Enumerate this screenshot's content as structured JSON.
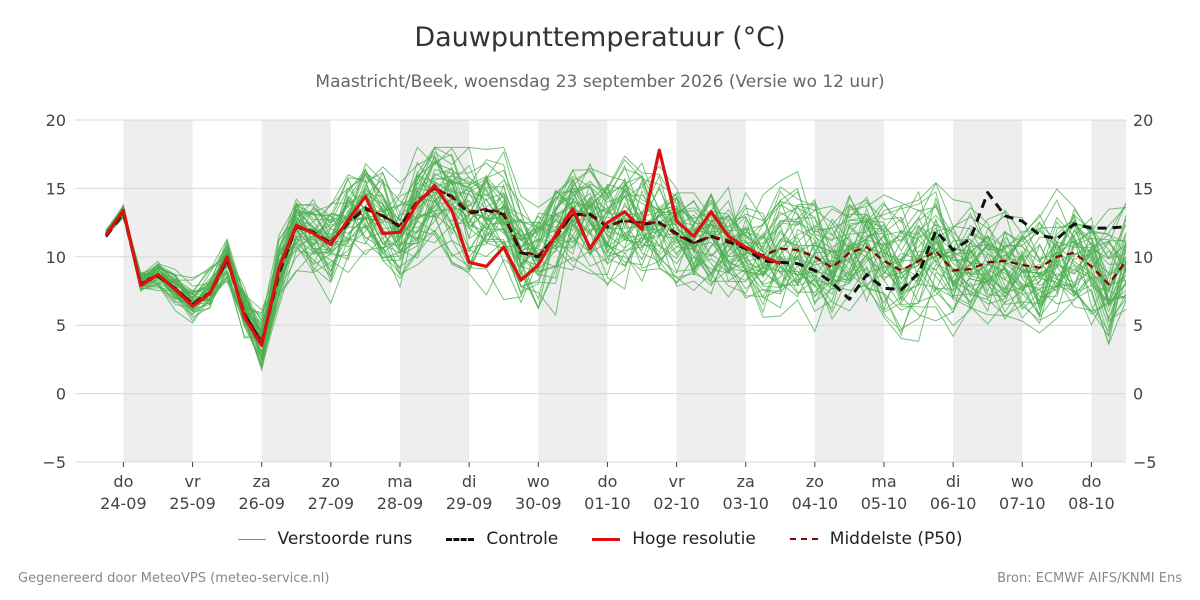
{
  "title": "Dauwpunttemperatuur (°C)",
  "subtitle": "Maastricht/Beek, woensdag 23 september 2026 (Versie wo 12 uur)",
  "footer": {
    "left": "Gegenereerd door MeteoVPS (meteo-service.nl)",
    "right": "Bron: ECMWF AIFS/KNMI Ens"
  },
  "legend": [
    {
      "label": "Verstoorde runs",
      "style": "ensemble"
    },
    {
      "label": "Controle",
      "style": "control"
    },
    {
      "label": "Hoge resolutie",
      "style": "hres"
    },
    {
      "label": "Middelste (P50)",
      "style": "p50"
    }
  ],
  "colors": {
    "ensemble": "#4caf50",
    "control": "#111111",
    "hres": "#dd1111",
    "p50": "#8b0000",
    "shade": "#eeeeee",
    "grid": "#d8d8d8"
  },
  "chart_data": {
    "type": "line",
    "ylim": [
      -5,
      20
    ],
    "yticks": [
      20,
      15,
      10,
      5,
      0,
      -5
    ],
    "ytick_labels": [
      "20",
      "15",
      "10",
      "5",
      "0",
      "−5"
    ],
    "xlim": [
      -0.7,
      14.5
    ],
    "xticks": [
      {
        "x": 0,
        "day": "do",
        "date": "24-09"
      },
      {
        "x": 1,
        "day": "vr",
        "date": "25-09"
      },
      {
        "x": 2,
        "day": "za",
        "date": "26-09"
      },
      {
        "x": 3,
        "day": "zo",
        "date": "27-09"
      },
      {
        "x": 4,
        "day": "ma",
        "date": "28-09"
      },
      {
        "x": 5,
        "day": "di",
        "date": "29-09"
      },
      {
        "x": 6,
        "day": "wo",
        "date": "30-09"
      },
      {
        "x": 7,
        "day": "do",
        "date": "01-10"
      },
      {
        "x": 8,
        "day": "vr",
        "date": "02-10"
      },
      {
        "x": 9,
        "day": "za",
        "date": "03-10"
      },
      {
        "x": 10,
        "day": "zo",
        "date": "04-10"
      },
      {
        "x": 11,
        "day": "ma",
        "date": "05-10"
      },
      {
        "x": 12,
        "day": "di",
        "date": "06-10"
      },
      {
        "x": 13,
        "day": "wo",
        "date": "07-10"
      },
      {
        "x": 14,
        "day": "do",
        "date": "08-10"
      }
    ],
    "shaded_bands": [
      [
        0,
        1
      ],
      [
        2,
        3
      ],
      [
        4,
        5
      ],
      [
        6,
        7
      ],
      [
        8,
        9
      ],
      [
        10,
        11
      ],
      [
        12,
        13
      ],
      [
        14,
        14.5
      ]
    ],
    "ensemble_members": 50,
    "series": [
      {
        "name": "Hoge resolutie",
        "style": "hres",
        "x": [
          -0.25,
          0,
          0.25,
          0.5,
          0.75,
          1,
          1.25,
          1.5,
          1.75,
          2,
          2.25,
          2.5,
          2.75,
          3,
          3.25,
          3.5,
          3.75,
          4,
          4.25,
          4.5,
          4.75,
          5,
          5.25,
          5.5,
          5.75,
          6,
          6.25,
          6.5,
          6.75,
          7,
          7.25,
          7.5,
          7.75,
          8,
          8.25,
          8.5,
          8.75,
          9,
          9.25,
          9.5
        ],
        "y": [
          11.6,
          13.4,
          7.9,
          8.7,
          7.6,
          6.4,
          7.3,
          10.0,
          5.6,
          3.5,
          9.2,
          12.3,
          11.7,
          10.9,
          12.7,
          14.4,
          11.7,
          11.8,
          13.9,
          15.2,
          13.4,
          9.6,
          9.3,
          10.7,
          8.3,
          9.4,
          11.6,
          13.5,
          10.6,
          12.5,
          13.3,
          12.0,
          17.8,
          12.6,
          11.5,
          13.3,
          11.5,
          10.7,
          10.0,
          9.5
        ]
      },
      {
        "name": "Controle",
        "style": "control",
        "x": [
          -0.25,
          0,
          0.25,
          0.5,
          0.75,
          1,
          1.25,
          1.5,
          1.75,
          2,
          2.25,
          2.5,
          2.75,
          3,
          3.25,
          3.5,
          3.75,
          4,
          4.25,
          4.5,
          4.75,
          5,
          5.25,
          5.5,
          5.75,
          6,
          6.25,
          6.5,
          6.75,
          7,
          7.25,
          7.5,
          7.75,
          8,
          8.25,
          8.5,
          8.75,
          9,
          9.25,
          9.5,
          9.75,
          10,
          10.25,
          10.5,
          10.75,
          11,
          11.25,
          11.5,
          11.75,
          12,
          12.25,
          12.5,
          12.75,
          13,
          13.25,
          13.5,
          13.75,
          14,
          14.25,
          14.5
        ],
        "y": [
          11.5,
          13.2,
          8.0,
          8.6,
          7.7,
          6.5,
          7.3,
          9.8,
          5.8,
          3.7,
          8.8,
          12.2,
          11.8,
          11.0,
          12.5,
          13.5,
          13.0,
          12.2,
          14.0,
          15.0,
          14.4,
          13.2,
          13.4,
          13.1,
          10.3,
          10.0,
          11.5,
          13.1,
          13.1,
          12.2,
          12.7,
          12.4,
          12.5,
          11.7,
          11.0,
          11.5,
          11.1,
          10.6,
          9.7,
          9.6,
          9.5,
          9.0,
          8.1,
          6.9,
          8.7,
          7.7,
          7.6,
          8.8,
          11.9,
          10.5,
          11.3,
          14.7,
          13.0,
          12.6,
          11.6,
          11.3,
          12.4,
          12.1,
          12.1,
          12.2
        ]
      },
      {
        "name": "Middelste (P50)",
        "style": "p50",
        "x": [
          -0.25,
          0,
          0.25,
          0.5,
          0.75,
          1,
          1.25,
          1.5,
          1.75,
          2,
          2.25,
          2.5,
          2.75,
          3,
          3.25,
          3.5,
          3.75,
          4,
          4.25,
          4.5,
          4.75,
          5,
          5.25,
          5.5,
          5.75,
          6,
          6.25,
          6.5,
          6.75,
          7,
          7.25,
          7.5,
          7.75,
          8,
          8.25,
          8.5,
          8.75,
          9,
          9.25,
          9.5,
          9.75,
          10,
          10.25,
          10.5,
          10.75,
          11,
          11.25,
          11.5,
          11.75,
          12,
          12.25,
          12.5,
          12.75,
          13,
          13.25,
          13.5,
          13.75,
          14,
          14.25,
          14.5
        ],
        "y": [
          11.7,
          13.3,
          8.1,
          8.7,
          7.7,
          6.6,
          7.4,
          9.7,
          5.9,
          3.8,
          8.9,
          12.2,
          11.7,
          11.1,
          12.6,
          13.6,
          13.0,
          12.3,
          14.1,
          15.0,
          14.4,
          13.3,
          13.5,
          13.2,
          10.4,
          10.1,
          11.4,
          13.1,
          13.0,
          12.3,
          12.6,
          12.5,
          12.5,
          11.6,
          11.0,
          11.5,
          11.2,
          10.7,
          10.1,
          10.6,
          10.5,
          10.0,
          9.2,
          10.3,
          10.7,
          9.7,
          9.0,
          9.7,
          10.4,
          9.0,
          9.1,
          9.6,
          9.7,
          9.4,
          9.2,
          10.0,
          10.3,
          9.3,
          8.0,
          9.7
        ]
      }
    ]
  }
}
